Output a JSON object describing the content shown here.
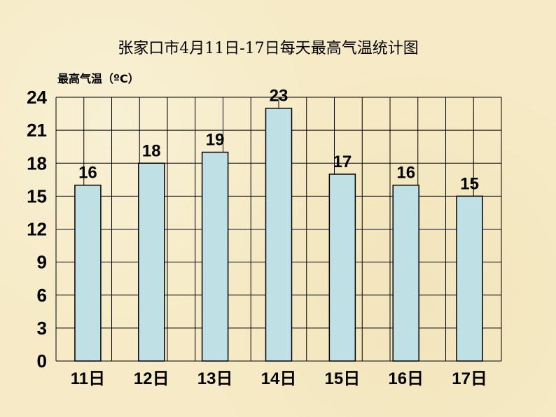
{
  "chart_data": {
    "type": "bar",
    "title": "张家口市4月11日-17日每天最高气温统计图",
    "ylabel": "最高气温（ºC）",
    "xlabel": "",
    "categories": [
      "11日",
      "12日",
      "13日",
      "14日",
      "15日",
      "16日",
      "17日"
    ],
    "values": [
      16,
      18,
      19,
      23,
      17,
      16,
      15
    ],
    "ylim": [
      0,
      24
    ],
    "yticks": [
      "0",
      "3",
      "6",
      "9",
      "12",
      "15",
      "18",
      "21",
      "24"
    ],
    "grid": true,
    "colors": {
      "bar_fill": "#bfe0e4",
      "bar_stroke": "#000000",
      "background": "#f6ebc6"
    }
  }
}
